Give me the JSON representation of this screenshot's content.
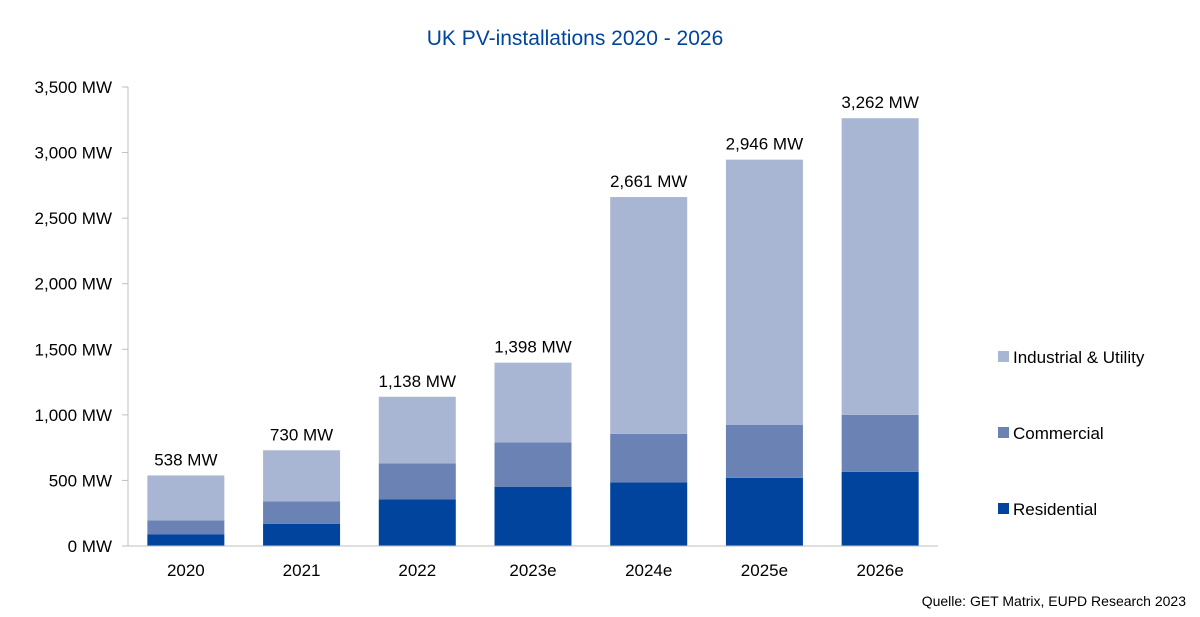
{
  "chart_data": {
    "type": "bar",
    "stacked": true,
    "title": "UK PV-installations 2020 - 2026",
    "categories": [
      "2020",
      "2021",
      "2022",
      "2023e",
      "2024e",
      "2025e",
      "2026e"
    ],
    "series": [
      {
        "name": "Residential",
        "color": "#00449e",
        "values": [
          90,
          170,
          355,
          450,
          485,
          520,
          565
        ]
      },
      {
        "name": "Commercial",
        "color": "#6b82b5",
        "values": [
          105,
          170,
          275,
          340,
          370,
          405,
          435
        ]
      },
      {
        "name": "Industrial & Utility",
        "color": "#a8b6d3",
        "values": [
          343,
          390,
          508,
          608,
          1806,
          2021,
          2262
        ]
      }
    ],
    "totals": [
      538,
      730,
      1138,
      1398,
      2661,
      2946,
      3262
    ],
    "total_labels": [
      "538 MW",
      "730 MW",
      "1,138 MW",
      "1,398 MW",
      "2,661 MW",
      "2,946 MW",
      "3,262 MW"
    ],
    "yticks": [
      0,
      500,
      1000,
      1500,
      2000,
      2500,
      3000,
      3500
    ],
    "ytick_labels": [
      "0 MW",
      "500 MW",
      "1,000 MW",
      "1,500 MW",
      "2,000 MW",
      "2,500 MW",
      "3,000 MW",
      "3,500 MW"
    ],
    "ylim": [
      0,
      3500
    ],
    "grid": false,
    "legend_position": "right",
    "title_color": "#00449e",
    "source": "Quelle: GET Matrix, EUPD Research 2023"
  }
}
